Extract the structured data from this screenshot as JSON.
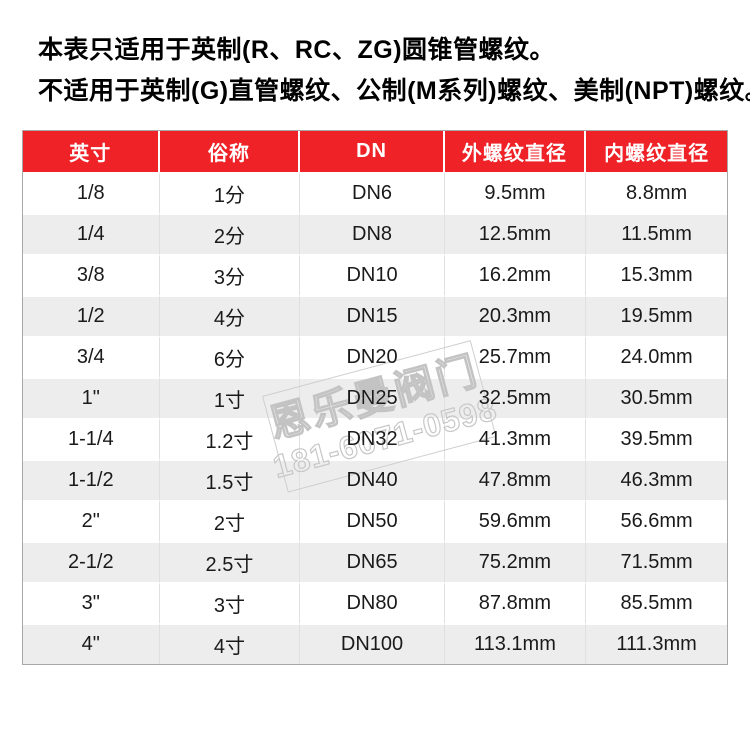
{
  "colors": {
    "header_red": "#ee2227",
    "row_alt_gray": "#ededed",
    "body_text": "#1a1a1a",
    "watermark_gray": "#c7c7c7"
  },
  "intro": {
    "line1": "本表只适用于英制(R、RC、ZG)圆锥管螺纹。",
    "line2": "不适用于英制(G)直管螺纹、公制(M系列)螺纹、美制(NPT)螺纹。"
  },
  "table": {
    "headers": [
      "英寸",
      "俗称",
      "DN",
      "外螺纹直径",
      "内螺纹直径"
    ],
    "rows": [
      [
        "1/8",
        "1分",
        "DN6",
        "9.5mm",
        "8.8mm"
      ],
      [
        "1/4",
        "2分",
        "DN8",
        "12.5mm",
        "11.5mm"
      ],
      [
        "3/8",
        "3分",
        "DN10",
        "16.2mm",
        "15.3mm"
      ],
      [
        "1/2",
        "4分",
        "DN15",
        "20.3mm",
        "19.5mm"
      ],
      [
        "3/4",
        "6分",
        "DN20",
        "25.7mm",
        "24.0mm"
      ],
      [
        "1\"",
        "1寸",
        "DN25",
        "32.5mm",
        "30.5mm"
      ],
      [
        "1-1/4",
        "1.2寸",
        "DN32",
        "41.3mm",
        "39.5mm"
      ],
      [
        "1-1/2",
        "1.5寸",
        "DN40",
        "47.8mm",
        "46.3mm"
      ],
      [
        "2\"",
        "2寸",
        "DN50",
        "59.6mm",
        "56.6mm"
      ],
      [
        "2-1/2",
        "2.5寸",
        "DN65",
        "75.2mm",
        "71.5mm"
      ],
      [
        "3\"",
        "3寸",
        "DN80",
        "87.8mm",
        "85.5mm"
      ],
      [
        "4\"",
        "4寸",
        "DN100",
        "113.1mm",
        "111.3mm"
      ]
    ]
  },
  "watermark": {
    "brand": "恩乐曼阀门",
    "phone": "181-6071-0598"
  }
}
